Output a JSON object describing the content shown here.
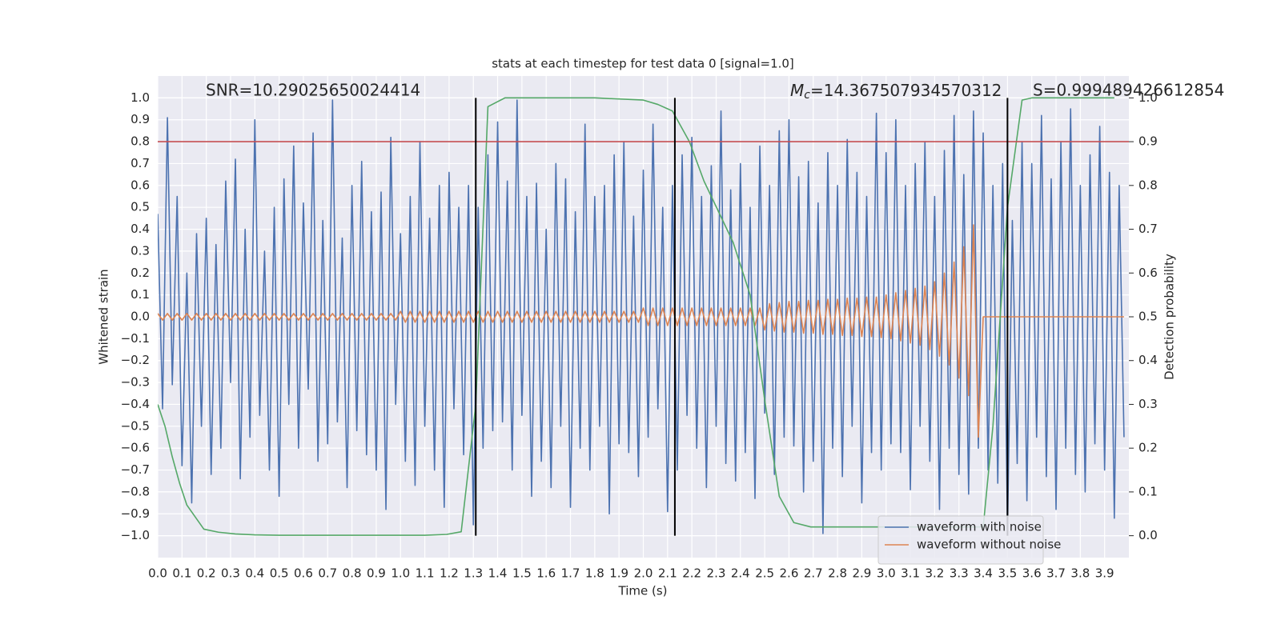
{
  "chart_data": {
    "type": "line",
    "title": "stats at each timestep for test data 0 [signal=1.0]",
    "x_label": "Time (s)",
    "y_label": "Whitened strain",
    "y2_label": "Detection probability",
    "xlim": [
      0,
      4.0
    ],
    "ylim": [
      -1.1,
      1.1
    ],
    "y2lim": [
      -0.05,
      1.05
    ],
    "grid": true,
    "legend": "lower right",
    "xticks": [
      {
        "value": 0,
        "label": "0.0"
      },
      {
        "value": 0.1,
        "label": "0.1"
      },
      {
        "value": 0.2,
        "label": "0.2"
      },
      {
        "value": 0.3,
        "label": "0.3"
      },
      {
        "value": 0.4,
        "label": "0.4"
      },
      {
        "value": 0.5,
        "label": "0.5"
      },
      {
        "value": 0.6,
        "label": "0.6"
      },
      {
        "value": 0.7,
        "label": "0.7"
      },
      {
        "value": 0.8,
        "label": "0.8"
      },
      {
        "value": 0.9,
        "label": "0.9"
      },
      {
        "value": 1,
        "label": "1.0"
      },
      {
        "value": 1.1,
        "label": "1.1"
      },
      {
        "value": 1.2,
        "label": "1.2"
      },
      {
        "value": 1.3,
        "label": "1.3"
      },
      {
        "value": 1.4,
        "label": "1.4"
      },
      {
        "value": 1.5,
        "label": "1.5"
      },
      {
        "value": 1.6,
        "label": "1.6"
      },
      {
        "value": 1.7,
        "label": "1.7"
      },
      {
        "value": 1.8,
        "label": "1.8"
      },
      {
        "value": 1.9,
        "label": "1.9"
      },
      {
        "value": 2,
        "label": "2.0"
      },
      {
        "value": 2.1,
        "label": "2.1"
      },
      {
        "value": 2.2,
        "label": "2.2"
      },
      {
        "value": 2.3,
        "label": "2.3"
      },
      {
        "value": 2.4,
        "label": "2.4"
      },
      {
        "value": 2.5,
        "label": "2.5"
      },
      {
        "value": 2.6,
        "label": "2.6"
      },
      {
        "value": 2.7,
        "label": "2.7"
      },
      {
        "value": 2.8,
        "label": "2.8"
      },
      {
        "value": 2.9,
        "label": "2.9"
      },
      {
        "value": 3,
        "label": "3.0"
      },
      {
        "value": 3.1,
        "label": "3.1"
      },
      {
        "value": 3.2,
        "label": "3.2"
      },
      {
        "value": 3.3,
        "label": "3.3"
      },
      {
        "value": 3.4,
        "label": "3.4"
      },
      {
        "value": 3.5,
        "label": "3.5"
      },
      {
        "value": 3.6,
        "label": "3.6"
      },
      {
        "value": 3.7,
        "label": "3.7"
      },
      {
        "value": 3.8,
        "label": "3.8"
      },
      {
        "value": 3.9,
        "label": "3.9"
      }
    ],
    "yticks": [
      {
        "value": -1,
        "label": "−1.0"
      },
      {
        "value": -0.9,
        "label": "−0.9"
      },
      {
        "value": -0.8,
        "label": "−0.8"
      },
      {
        "value": -0.7,
        "label": "−0.7"
      },
      {
        "value": -0.6,
        "label": "−0.6"
      },
      {
        "value": -0.5,
        "label": "−0.5"
      },
      {
        "value": -0.4,
        "label": "−0.4"
      },
      {
        "value": -0.3,
        "label": "−0.3"
      },
      {
        "value": -0.2,
        "label": "−0.2"
      },
      {
        "value": -0.1,
        "label": "−0.1"
      },
      {
        "value": 0,
        "label": "0.0"
      },
      {
        "value": 0.1,
        "label": "0.1"
      },
      {
        "value": 0.2,
        "label": "0.2"
      },
      {
        "value": 0.3,
        "label": "0.3"
      },
      {
        "value": 0.4,
        "label": "0.4"
      },
      {
        "value": 0.5,
        "label": "0.5"
      },
      {
        "value": 0.6,
        "label": "0.6"
      },
      {
        "value": 0.7,
        "label": "0.7"
      },
      {
        "value": 0.8,
        "label": "0.8"
      },
      {
        "value": 0.9,
        "label": "0.9"
      },
      {
        "value": 1,
        "label": "1.0"
      }
    ],
    "y2ticks": [
      {
        "value": 0,
        "label": "0.0"
      },
      {
        "value": 0.1,
        "label": "0.1"
      },
      {
        "value": 0.2,
        "label": "0.2"
      },
      {
        "value": 0.3,
        "label": "0.3"
      },
      {
        "value": 0.4,
        "label": "0.4"
      },
      {
        "value": 0.5,
        "label": "0.5"
      },
      {
        "value": 0.6,
        "label": "0.6"
      },
      {
        "value": 0.7,
        "label": "0.7"
      },
      {
        "value": 0.8,
        "label": "0.8"
      },
      {
        "value": 0.9,
        "label": "0.9"
      },
      {
        "value": 1,
        "label": "1.0"
      }
    ],
    "annotations": [
      {
        "text": "SNR=10.29025650024414"
      },
      {
        "symbol": "M",
        "subscript": "c",
        "text": "=14.367507934570312"
      },
      {
        "text": "S=0.999489426612854"
      }
    ],
    "hline": {
      "value": 0.8,
      "color": "#c44e52"
    },
    "vlines": {
      "values": [
        1.31,
        2.13,
        3.5
      ],
      "color": "#000000"
    },
    "x": [
      0,
      0.02,
      0.04,
      0.06,
      0.08,
      0.1,
      0.12,
      0.14,
      0.16,
      0.18,
      0.2,
      0.22,
      0.24,
      0.26,
      0.28,
      0.3,
      0.32,
      0.34,
      0.36,
      0.38,
      0.4,
      0.42,
      0.44,
      0.46,
      0.48,
      0.5,
      0.52,
      0.54,
      0.56,
      0.58,
      0.6,
      0.62,
      0.64,
      0.66,
      0.68,
      0.7,
      0.72,
      0.74,
      0.76,
      0.78,
      0.8,
      0.82,
      0.84,
      0.86,
      0.88,
      0.9,
      0.92,
      0.94,
      0.96,
      0.98,
      1,
      1.02,
      1.04,
      1.06,
      1.08,
      1.1,
      1.12,
      1.14,
      1.16,
      1.18,
      1.2,
      1.22,
      1.24,
      1.26,
      1.28,
      1.3,
      1.32,
      1.34,
      1.36,
      1.38,
      1.4,
      1.42,
      1.44,
      1.46,
      1.48,
      1.5,
      1.52,
      1.54,
      1.56,
      1.58,
      1.6,
      1.62,
      1.64,
      1.66,
      1.68,
      1.7,
      1.72,
      1.74,
      1.76,
      1.78,
      1.8,
      1.82,
      1.84,
      1.86,
      1.88,
      1.9,
      1.92,
      1.94,
      1.96,
      1.98,
      2,
      2.02,
      2.04,
      2.06,
      2.08,
      2.1,
      2.12,
      2.14,
      2.16,
      2.18,
      2.2,
      2.22,
      2.24,
      2.26,
      2.28,
      2.3,
      2.32,
      2.34,
      2.36,
      2.38,
      2.4,
      2.42,
      2.44,
      2.46,
      2.48,
      2.5,
      2.52,
      2.54,
      2.56,
      2.58,
      2.6,
      2.62,
      2.64,
      2.66,
      2.68,
      2.7,
      2.72,
      2.74,
      2.76,
      2.78,
      2.8,
      2.82,
      2.84,
      2.86,
      2.88,
      2.9,
      2.92,
      2.94,
      2.96,
      2.98,
      3,
      3.02,
      3.04,
      3.06,
      3.08,
      3.1,
      3.12,
      3.14,
      3.16,
      3.18,
      3.2,
      3.22,
      3.24,
      3.26,
      3.28,
      3.3,
      3.32,
      3.34,
      3.36,
      3.38,
      3.4,
      3.42,
      3.44,
      3.46,
      3.48,
      3.5,
      3.52,
      3.54,
      3.56,
      3.58,
      3.6,
      3.62,
      3.64,
      3.66,
      3.68,
      3.7,
      3.72,
      3.74,
      3.76,
      3.78,
      3.8,
      3.82,
      3.84,
      3.86,
      3.88,
      3.9,
      3.92,
      3.94,
      3.96,
      3.98
    ],
    "series": [
      {
        "name": "waveform with noise",
        "color": "#4c72b0",
        "values": [
          0.47,
          -0.42,
          0.91,
          -0.31,
          0.55,
          -0.68,
          0.2,
          -0.85,
          0.38,
          -0.5,
          0.45,
          -0.72,
          0.33,
          -0.6,
          0.62,
          -0.3,
          0.72,
          -0.74,
          0.4,
          -0.55,
          0.9,
          -0.45,
          0.3,
          -0.7,
          0.5,
          -0.82,
          0.63,
          -0.4,
          0.78,
          -0.6,
          0.52,
          -0.33,
          0.84,
          -0.66,
          0.44,
          -0.58,
          0.99,
          -0.48,
          0.36,
          -0.78,
          0.6,
          -0.52,
          0.71,
          -0.63,
          0.48,
          -0.7,
          0.57,
          -0.88,
          0.82,
          -0.4,
          0.38,
          -0.66,
          0.55,
          -0.77,
          0.8,
          -0.5,
          0.45,
          -0.7,
          0.6,
          -0.87,
          0.66,
          -0.42,
          0.5,
          -0.63,
          0.6,
          -0.95,
          0.5,
          -0.6,
          0.74,
          -0.52,
          0.89,
          -0.48,
          0.62,
          -0.7,
          0.99,
          -0.45,
          0.55,
          -0.82,
          0.61,
          -0.66,
          0.4,
          -0.78,
          0.7,
          -0.5,
          0.63,
          -0.87,
          0.48,
          -0.6,
          0.88,
          -0.7,
          0.55,
          -0.5,
          0.6,
          -0.9,
          0.74,
          -0.58,
          0.8,
          -0.62,
          0.46,
          -0.73,
          0.67,
          -0.55,
          0.88,
          -0.42,
          0.5,
          -0.89,
          0.6,
          -0.7,
          0.74,
          -0.45,
          0.82,
          -0.6,
          0.55,
          -0.78,
          0.69,
          -0.5,
          0.94,
          -0.67,
          0.58,
          -0.75,
          0.7,
          -0.62,
          0.5,
          -0.83,
          0.78,
          -0.44,
          0.6,
          -0.72,
          0.85,
          -0.55,
          0.9,
          -0.59,
          0.64,
          -0.8,
          0.71,
          -0.66,
          0.52,
          -0.99,
          0.75,
          -0.6,
          0.6,
          -0.73,
          0.81,
          -0.5,
          0.66,
          -0.85,
          0.55,
          -0.62,
          0.93,
          -0.7,
          0.75,
          -0.58,
          0.9,
          -0.62,
          0.6,
          -0.79,
          0.7,
          -0.5,
          0.8,
          -0.66,
          0.55,
          -0.88,
          0.76,
          -0.6,
          0.92,
          -0.72,
          0.65,
          -0.81,
          0.94,
          -0.6,
          0.84,
          -0.7,
          0.6,
          -0.76,
          0.7,
          -0.98,
          0.44,
          -0.67,
          0.8,
          -0.84,
          0.7,
          -0.55,
          0.92,
          -0.73,
          0.63,
          -0.88,
          0.8,
          -0.6,
          0.95,
          -0.72,
          0.6,
          -0.8,
          0.74,
          -0.58,
          0.87,
          -0.7,
          0.66,
          -0.92,
          0.6,
          -0.55
        ]
      },
      {
        "name": "waveform without noise",
        "color": "#dd8452",
        "values": [
          0.015,
          -0.015,
          0.015,
          -0.015,
          0.015,
          -0.015,
          0.015,
          -0.015,
          0.015,
          -0.015,
          0.015,
          -0.015,
          0.015,
          -0.015,
          0.015,
          -0.015,
          0.015,
          -0.015,
          0.015,
          -0.015,
          0.015,
          -0.015,
          0.015,
          -0.015,
          0.015,
          -0.015,
          0.015,
          -0.015,
          0.015,
          -0.015,
          0.015,
          -0.015,
          0.015,
          -0.015,
          0.015,
          -0.015,
          0.015,
          -0.015,
          0.015,
          -0.015,
          0.015,
          -0.015,
          0.015,
          -0.015,
          0.015,
          -0.015,
          0.015,
          -0.015,
          0.015,
          -0.015,
          0.025,
          -0.025,
          0.025,
          -0.025,
          0.025,
          -0.025,
          0.025,
          -0.025,
          0.025,
          -0.025,
          0.025,
          -0.025,
          0.025,
          -0.025,
          0.025,
          -0.025,
          0.025,
          -0.025,
          0.025,
          -0.025,
          0.025,
          -0.025,
          0.025,
          -0.025,
          0.025,
          -0.025,
          0.025,
          -0.025,
          0.025,
          -0.025,
          0.025,
          -0.025,
          0.025,
          -0.025,
          0.025,
          -0.025,
          0.025,
          -0.025,
          0.025,
          -0.025,
          0.025,
          -0.025,
          0.025,
          -0.025,
          0.025,
          -0.025,
          0.025,
          -0.025,
          0.025,
          -0.025,
          0.04,
          -0.04,
          0.04,
          -0.04,
          0.04,
          -0.04,
          0.04,
          -0.04,
          0.04,
          -0.04,
          0.04,
          -0.04,
          0.04,
          -0.04,
          0.04,
          -0.04,
          0.04,
          -0.04,
          0.04,
          -0.04,
          0.04,
          -0.04,
          0.04,
          -0.04,
          0.04,
          -0.06,
          0.06,
          -0.065,
          0.065,
          -0.07,
          0.07,
          -0.07,
          0.07,
          -0.075,
          0.075,
          -0.075,
          0.075,
          -0.08,
          0.08,
          -0.08,
          0.08,
          -0.085,
          0.085,
          -0.085,
          0.085,
          -0.09,
          0.09,
          -0.09,
          0.09,
          -0.095,
          0.1,
          -0.1,
          0.11,
          -0.11,
          0.12,
          -0.12,
          0.13,
          -0.13,
          0.14,
          -0.15,
          0.16,
          -0.18,
          0.2,
          -0.22,
          0.25,
          -0.28,
          0.32,
          -0.36,
          0.42,
          -0.55,
          0,
          0,
          0,
          0,
          0,
          0,
          0,
          0,
          0,
          0,
          0,
          0,
          0,
          0,
          0,
          0,
          0,
          0,
          0,
          0,
          0,
          0,
          0,
          0,
          0,
          0,
          0,
          0,
          0,
          0
        ]
      },
      {
        "color": "#55a868",
        "axis": "y2",
        "x": [
          0,
          0.03,
          0.06,
          0.09,
          0.12,
          0.19,
          0.25,
          0.32,
          0.4,
          0.5,
          0.6,
          0.8,
          1.0,
          1.1,
          1.19,
          1.25,
          1.31,
          1.36,
          1.43,
          1.6,
          1.8,
          2.0,
          2.06,
          2.12,
          2.19,
          2.25,
          2.31,
          2.37,
          2.44,
          2.5,
          2.56,
          2.62,
          2.69,
          2.8,
          3.0,
          3.2,
          3.3,
          3.4,
          3.44,
          3.5,
          3.56,
          3.6,
          3.8,
          3.94
        ],
        "values": [
          0.3,
          0.25,
          0.18,
          0.12,
          0.07,
          0.015,
          0.008,
          0.004,
          0.002,
          0.001,
          0.001,
          0.001,
          0.001,
          0.001,
          0.003,
          0.009,
          0.3,
          0.98,
          1.0,
          1.0,
          1.0,
          0.995,
          0.985,
          0.97,
          0.9,
          0.81,
          0.74,
          0.67,
          0.55,
          0.31,
          0.09,
          0.03,
          0.02,
          0.02,
          0.02,
          0.02,
          0.02,
          0.02,
          0.25,
          0.75,
          0.995,
          1.0,
          1.0,
          1.0
        ]
      }
    ]
  }
}
